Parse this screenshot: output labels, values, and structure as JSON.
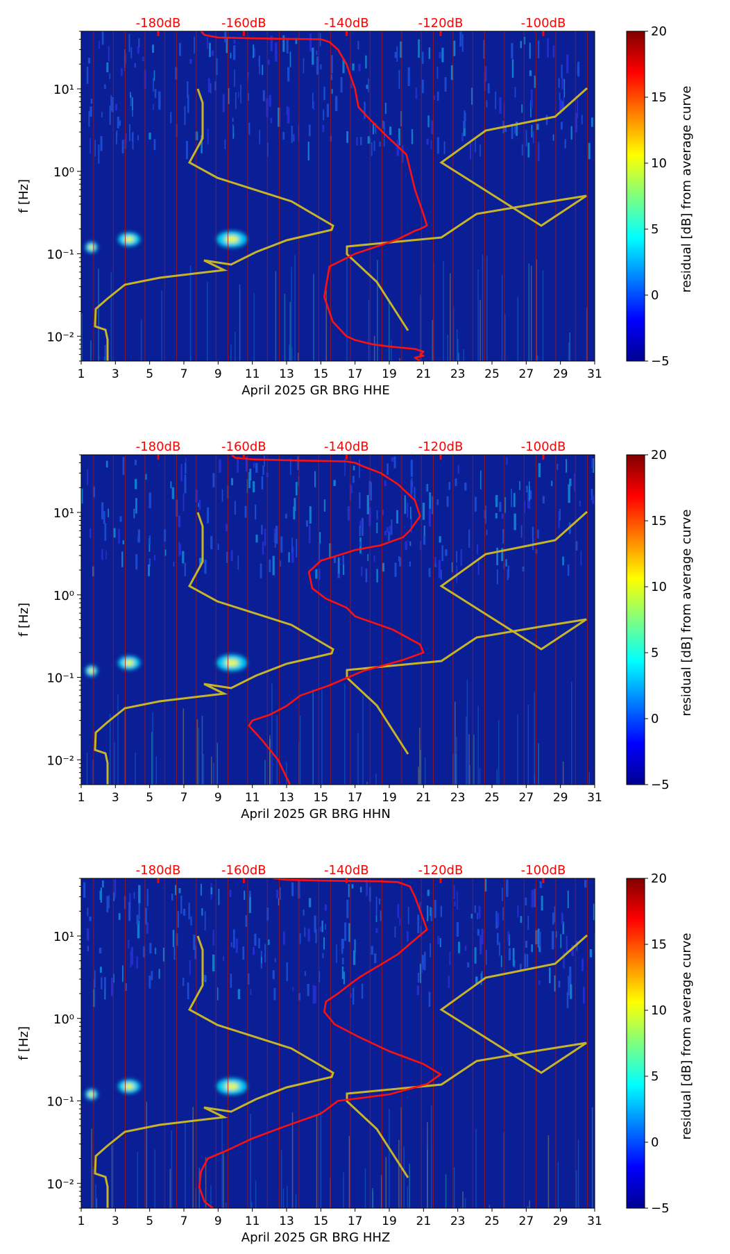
{
  "figure": {
    "colorbar": {
      "label": "residual [dB] from average curve",
      "ticks": [
        "20",
        "15",
        "10",
        "5",
        "0",
        "−5"
      ],
      "range": [
        -5,
        20
      ],
      "colormap": "jet"
    },
    "colors": {
      "background": "#0a1f96",
      "nlnm_nhnm": "#c8b428",
      "avg_curve": "#ff1010",
      "db_axis": "#ff0000",
      "day_lines": "#a01a1a"
    }
  },
  "chart_data": [
    {
      "type": "heatmap",
      "xlabel": "April 2025 GR BRG  HHE",
      "ylabel": "f [Hz]",
      "x_ticks": [
        "1",
        "3",
        "5",
        "7",
        "9",
        "11",
        "13",
        "15",
        "17",
        "19",
        "21",
        "23",
        "25",
        "27",
        "29",
        "31"
      ],
      "x_range": [
        1,
        31
      ],
      "y_scale": "log",
      "y_range": [
        0.005,
        50
      ],
      "y_ticks": [
        "10¹",
        "10⁰",
        "10⁻¹",
        "10⁻²"
      ],
      "db_axis_ticks": [
        "-180dB",
        "-160dB",
        "-140dB",
        "-120dB",
        "-100dB"
      ],
      "db_axis_days": [
        5.5,
        10.5,
        16.5,
        22.0,
        28.0
      ],
      "series": [
        {
          "days": [
            8,
            8.2,
            9,
            11,
            13,
            15,
            15.5,
            16,
            16.5,
            17,
            17.2,
            18,
            19,
            20,
            20.5,
            21,
            21.2,
            20.8,
            20.5,
            19.5,
            17,
            15.5,
            15.2,
            15.7,
            16.5,
            17,
            18,
            19,
            20.5,
            21,
            20.8,
            21,
            20.5,
            20.8
          ],
          "freqs": [
            50,
            45,
            42,
            41,
            40.5,
            40,
            37,
            30,
            20,
            10,
            6,
            4,
            2.5,
            1.6,
            0.6,
            0.3,
            0.22,
            0.2,
            0.19,
            0.15,
            0.1,
            0.07,
            0.03,
            0.015,
            0.01,
            0.009,
            0.008,
            0.0075,
            0.007,
            0.0065,
            0.006,
            0.0058,
            0.0055,
            0.005
          ]
        }
      ]
    },
    {
      "type": "heatmap",
      "xlabel": "April 2025 GR BRG  HHN",
      "ylabel": "f [Hz]",
      "x_ticks": [
        "1",
        "3",
        "5",
        "7",
        "9",
        "11",
        "13",
        "15",
        "17",
        "19",
        "21",
        "23",
        "25",
        "27",
        "29",
        "31"
      ],
      "x_range": [
        1,
        31
      ],
      "y_scale": "log",
      "y_range": [
        0.005,
        50
      ],
      "y_ticks": [
        "10¹",
        "10⁰",
        "10⁻¹",
        "10⁻²"
      ],
      "db_axis_ticks": [
        "-180dB",
        "-160dB",
        "-140dB",
        "-120dB",
        "-100dB"
      ],
      "db_axis_days": [
        5.5,
        10.5,
        16.5,
        22.0,
        28.0
      ],
      "series": [
        {
          "days": [
            9.8,
            10,
            11,
            13,
            14,
            15.5,
            16.5,
            17,
            17.5,
            18.5,
            19.5,
            20.5,
            20.8,
            20.2,
            19.8,
            18.5,
            17,
            16.2,
            15,
            14.3,
            14.5,
            15.3,
            16.5,
            17,
            19.2,
            20.8,
            21,
            19.7,
            17.5,
            15.5,
            13.8,
            13,
            12,
            11,
            10.8,
            11.6,
            12.5,
            13.2
          ],
          "freqs": [
            50,
            46,
            44,
            43,
            42.5,
            42,
            41.5,
            40,
            36,
            30,
            22,
            14,
            9,
            6,
            5,
            4,
            3.5,
            3.1,
            2.6,
            1.9,
            1.2,
            0.9,
            0.7,
            0.55,
            0.38,
            0.25,
            0.2,
            0.16,
            0.12,
            0.08,
            0.06,
            0.045,
            0.035,
            0.03,
            0.026,
            0.017,
            0.01,
            0.005
          ]
        }
      ]
    },
    {
      "type": "heatmap",
      "xlabel": "April 2025 GR BRG  HHZ",
      "ylabel": "f [Hz]",
      "x_ticks": [
        "1",
        "3",
        "5",
        "7",
        "9",
        "11",
        "13",
        "15",
        "17",
        "19",
        "21",
        "23",
        "25",
        "27",
        "29",
        "31"
      ],
      "x_range": [
        1,
        31
      ],
      "y_scale": "log",
      "y_range": [
        0.005,
        50
      ],
      "y_ticks": [
        "10¹",
        "10⁰",
        "10⁻¹",
        "10⁻²"
      ],
      "db_axis_ticks": [
        "-180dB",
        "-160dB",
        "-140dB",
        "-120dB",
        "-100dB"
      ],
      "db_axis_days": [
        5.5,
        10.5,
        16.5,
        22.0,
        28.0
      ],
      "series": [
        {
          "days": [
            12.2,
            13,
            14,
            15,
            16.5,
            18.5,
            19.5,
            20.2,
            20.5,
            21.2,
            20.2,
            19.5,
            18.5,
            17.3,
            16.7,
            16,
            15.3,
            15.2,
            15.8,
            17.2,
            19,
            21,
            22,
            21.2,
            19,
            16,
            15,
            13,
            11,
            9.5,
            8.4,
            8,
            7.9,
            8.2,
            8.7
          ],
          "freqs": [
            50,
            48,
            47.5,
            47,
            46.5,
            46,
            45,
            40,
            30,
            12,
            8,
            6,
            4.5,
            3.2,
            2.6,
            2,
            1.6,
            1.2,
            0.85,
            0.6,
            0.4,
            0.28,
            0.21,
            0.16,
            0.12,
            0.1,
            0.07,
            0.05,
            0.035,
            0.025,
            0.02,
            0.014,
            0.009,
            0.006,
            0.005
          ]
        }
      ]
    }
  ]
}
